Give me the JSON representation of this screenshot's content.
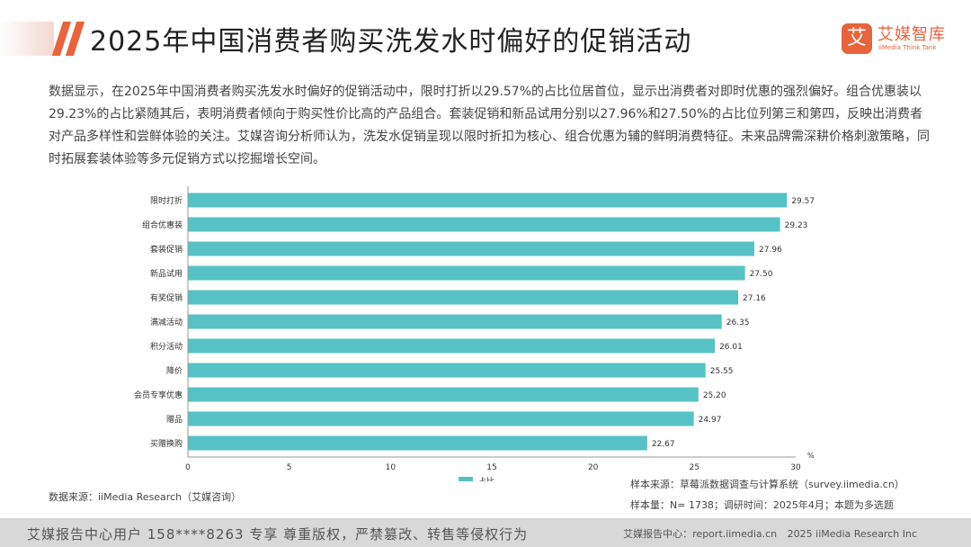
{
  "header": {
    "title": "2025年中国消费者购买洗发水时偏好的促销活动",
    "logo_mark": "艾",
    "logo_name": "艾媒智库",
    "logo_sub": "iiMedia Think Tank"
  },
  "description": "数据显示，在2025年中国消费者购买洗发水时偏好的促销活动中，限时打折以29.57%的占比位居首位，显示出消费者对即时优惠的强烈偏好。组合优惠装以29.23%的占比紧随其后，表明消费者倾向于购买性价比高的产品组合。套装促销和新品试用分别以27.96%和27.50%的占比位列第三和第四，反映出消费者对产品多样性和尝鲜体验的关注。艾媒咨询分析师认为，洗发水促销呈现以限时折扣为核心、组合优惠为辅的鲜明消费特征。未来品牌需深耕价格刺激策略，同时拓展套装体验等多元促销方式以挖掘增长空间。",
  "chart_data": {
    "type": "bar",
    "orientation": "horizontal",
    "categories": [
      "限时打折",
      "组合优惠装",
      "套装促销",
      "新品试用",
      "有奖促销",
      "满减活动",
      "积分活动",
      "降价",
      "会员专享优惠",
      "赠品",
      "买赠换购"
    ],
    "series": [
      {
        "name": "占比",
        "values": [
          29.57,
          29.23,
          27.96,
          27.5,
          27.16,
          26.35,
          26.01,
          25.55,
          25.2,
          24.97,
          22.67
        ]
      }
    ],
    "value_labels": [
      "29.57",
      "29.23",
      "27.96",
      "27.50",
      "27.16",
      "26.35",
      "26.01",
      "25.55",
      "25.20",
      "24.97",
      "22.67"
    ],
    "xlim": [
      0,
      30
    ],
    "xticks": [
      "0",
      "5",
      "10",
      "15",
      "20",
      "25",
      "30"
    ],
    "x_unit": "%",
    "grid": false,
    "legend": "bottom-center",
    "bar_color": "#56c2c6"
  },
  "notes": {
    "source": "数据来源：iiMedia Research（艾媒咨询）",
    "sample_source": "样本来源：草莓派数据调查与计算系统（survey.iimedia.cn）",
    "sample_info": "样本量：N= 1738；调研时间：2025年4月；本题为多选题"
  },
  "footer": {
    "left": "艾媒报告中心用户 158****8263 专享 尊重版权，严禁篡改、转售等侵权行为",
    "right_center": "艾媒报告中心：report.iimedia.cn",
    "right_copy": "2025 iiMedia Research Inc"
  }
}
